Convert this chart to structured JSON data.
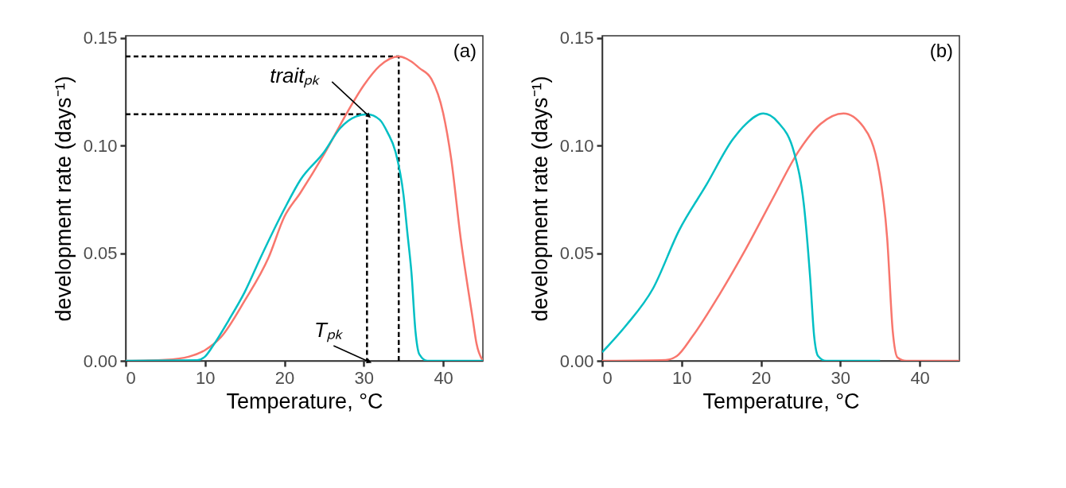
{
  "chart_data": [
    {
      "type": "line",
      "xlabel": "Temperature, °C",
      "ylabel": "development rate (days⁻¹)",
      "xlim": [
        0,
        45
      ],
      "xticks": [
        0,
        10,
        20,
        30,
        40
      ],
      "ylim": [
        0,
        0.151
      ],
      "yticks": [
        {
          "value": 0,
          "label": "0.00"
        },
        {
          "value": 0.05,
          "label": "0.05"
        },
        {
          "value": 0.1,
          "label": "0.10"
        },
        {
          "value": 0.15,
          "label": "0.15"
        }
      ],
      "grid": false,
      "annotations": [
        "(a)",
        {
          "text": "traitₚₖ",
          "x": 30.4,
          "y": 0.1145
        },
        {
          "text": "Tₚₖ",
          "x": 30.4,
          "y": 0
        }
      ],
      "series": [
        {
          "color": "#000000",
          "line_style": "dashed",
          "x": [
            0,
            34.4,
            34.4
          ],
          "values": [
            0.1414,
            0.1414,
            0
          ]
        },
        {
          "color": "#000000",
          "line_style": "dashed",
          "x": [
            0,
            30.4,
            30.4
          ],
          "values": [
            0.1145,
            0.1145,
            0
          ]
        },
        {
          "color": "#f8766d",
          "x": [
            0,
            5,
            8,
            10,
            12,
            15,
            18,
            20,
            22,
            25,
            28,
            30,
            32,
            34.4,
            36,
            37,
            38.5,
            40,
            41,
            42.2,
            43.7,
            44.2,
            45
          ],
          "values": [
            0,
            0.0005,
            0.002,
            0.005,
            0.011,
            0.028,
            0.048,
            0.067,
            0.078,
            0.096,
            0.116,
            0.128,
            0.137,
            0.1414,
            0.139,
            0.136,
            0.131,
            0.115,
            0.094,
            0.057,
            0.02,
            0.008,
            0
          ]
        },
        {
          "color": "#00bfc4",
          "x": [
            0,
            9,
            10,
            11,
            13,
            15,
            17,
            20,
            22,
            25,
            27,
            29,
            30.4,
            32,
            33,
            34,
            35,
            35.5,
            36,
            36.5,
            37,
            38,
            45
          ],
          "values": [
            0,
            0.0003,
            0.002,
            0.007,
            0.019,
            0.032,
            0.048,
            0.0706,
            0.084,
            0.097,
            0.108,
            0.1135,
            0.1145,
            0.112,
            0.106,
            0.097,
            0.077,
            0.059,
            0.041,
            0.014,
            0.003,
            0,
            0
          ]
        }
      ]
    },
    {
      "type": "line",
      "xlabel": "Temperature, °C",
      "ylabel": "development rate (days⁻¹)",
      "xlim": [
        0,
        45
      ],
      "xticks": [
        0,
        10,
        20,
        30,
        40
      ],
      "ylim": [
        0,
        0.151
      ],
      "yticks": [
        {
          "value": 0,
          "label": "0.00"
        },
        {
          "value": 0.05,
          "label": "0.05"
        },
        {
          "value": 0.1,
          "label": "0.10"
        },
        {
          "value": 0.15,
          "label": "0.15"
        }
      ],
      "grid": false,
      "annotations": [
        "(b)"
      ],
      "series": [
        {
          "color": "#f8766d",
          "x": [
            0,
            8,
            9.4,
            11.4,
            14.8,
            18.1,
            21.5,
            24.8,
            27.5,
            30.4,
            32.9,
            34.9,
            35.9,
            36.6,
            37.2,
            38.3,
            45
          ],
          "values": [
            0,
            0.0004,
            0.0022,
            0.0115,
            0.031,
            0.052,
            0.0755,
            0.0977,
            0.11,
            0.1149,
            0.1087,
            0.0878,
            0.057,
            0.0139,
            0.0016,
            0,
            0
          ]
        },
        {
          "color": "#00bfc4",
          "x": [
            0,
            3,
            6.4,
            9.7,
            13.1,
            16.4,
            18.1,
            20.3,
            22.1,
            24.2,
            25.5,
            26.2,
            26.7,
            27.2,
            28.2,
            35
          ],
          "values": [
            0.004,
            0.0164,
            0.0336,
            0.0607,
            0.0816,
            0.1026,
            0.11,
            0.1149,
            0.111,
            0.0964,
            0.0693,
            0.0385,
            0.0115,
            0.0022,
            0,
            0
          ]
        }
      ]
    }
  ]
}
